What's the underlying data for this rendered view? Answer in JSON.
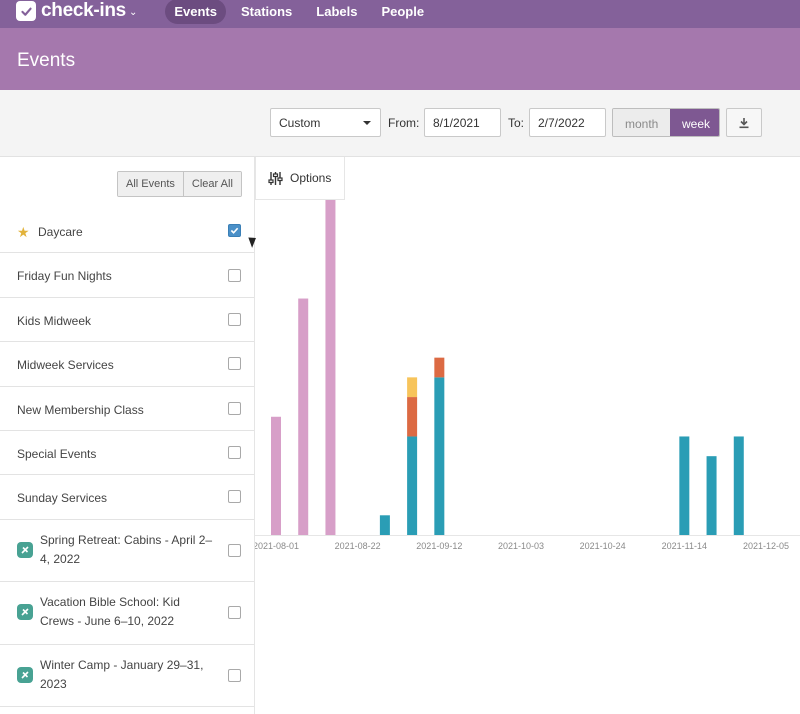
{
  "app": {
    "name": "check-ins"
  },
  "nav": {
    "items": [
      {
        "label": "Events",
        "active": true
      },
      {
        "label": "Stations",
        "active": false
      },
      {
        "label": "Labels",
        "active": false
      },
      {
        "label": "People",
        "active": false
      }
    ]
  },
  "page": {
    "title": "Events"
  },
  "filters": {
    "range_select": "Custom",
    "from_label": "From:",
    "from_value": "8/1/2021",
    "to_label": "To:",
    "to_value": "2/7/2022",
    "period_options": [
      "month",
      "week"
    ],
    "selected_period": "week"
  },
  "sidebar": {
    "all_events_label": "All Events",
    "clear_all_label": "Clear All",
    "events": [
      {
        "name": "Daycare",
        "checked": true,
        "icon": "star-icon"
      },
      {
        "name": "Friday Fun Nights",
        "checked": false,
        "icon": ""
      },
      {
        "name": "Kids Midweek",
        "checked": false,
        "icon": ""
      },
      {
        "name": "Midweek Services",
        "checked": false,
        "icon": ""
      },
      {
        "name": "New Membership Class",
        "checked": false,
        "icon": ""
      },
      {
        "name": "Special Events",
        "checked": false,
        "icon": ""
      },
      {
        "name": "Sunday Services",
        "checked": false,
        "icon": ""
      },
      {
        "name": "Spring Retreat: Cabins - April 2–4, 2022",
        "checked": false,
        "icon": "registration-icon"
      },
      {
        "name": "Vacation Bible School: Kid Crews - June 6–10, 2022",
        "checked": false,
        "icon": "registration-icon"
      },
      {
        "name": "Winter Camp - January 29–31, 2023",
        "checked": false,
        "icon": "registration-icon"
      }
    ]
  },
  "chart": {
    "options_label": "Options"
  },
  "colors": {
    "nav": "#84619a",
    "header": "#a578ad",
    "pink": "#d79fc8",
    "teal": "#2a9db5",
    "orange": "#dc6a43",
    "yellow": "#f7c45b"
  },
  "chart_data": {
    "type": "bar",
    "stacked": true,
    "x_tick_labels": [
      "2021-08-01",
      "2021-08-22",
      "2021-09-12",
      "2021-10-03",
      "2021-10-24",
      "2021-11-14",
      "2021-12-05"
    ],
    "x_start": "2021-08-01",
    "x_end": "2021-12-05",
    "bars": [
      {
        "x": "2021-08-01",
        "segments": [
          {
            "color": "#d79fc8",
            "value": 24
          }
        ]
      },
      {
        "x": "2021-08-08",
        "segments": [
          {
            "color": "#d79fc8",
            "value": 48
          }
        ]
      },
      {
        "x": "2021-08-15",
        "segments": [
          {
            "color": "#d79fc8",
            "value": 68
          }
        ]
      },
      {
        "x": "2021-08-29",
        "segments": [
          {
            "color": "#2a9db5",
            "value": 4
          }
        ]
      },
      {
        "x": "2021-09-05",
        "segments": [
          {
            "color": "#2a9db5",
            "value": 20
          },
          {
            "color": "#dc6a43",
            "value": 8
          },
          {
            "color": "#f7c45b",
            "value": 4
          }
        ]
      },
      {
        "x": "2021-09-12",
        "segments": [
          {
            "color": "#2a9db5",
            "value": 32
          },
          {
            "color": "#dc6a43",
            "value": 4
          }
        ]
      },
      {
        "x": "2021-11-14",
        "segments": [
          {
            "color": "#2a9db5",
            "value": 20
          }
        ]
      },
      {
        "x": "2021-11-21",
        "segments": [
          {
            "color": "#2a9db5",
            "value": 16
          }
        ]
      },
      {
        "x": "2021-11-28",
        "segments": [
          {
            "color": "#2a9db5",
            "value": 20
          }
        ]
      }
    ],
    "y_range": [
      0,
      68
    ],
    "grid": false,
    "legend": false
  }
}
